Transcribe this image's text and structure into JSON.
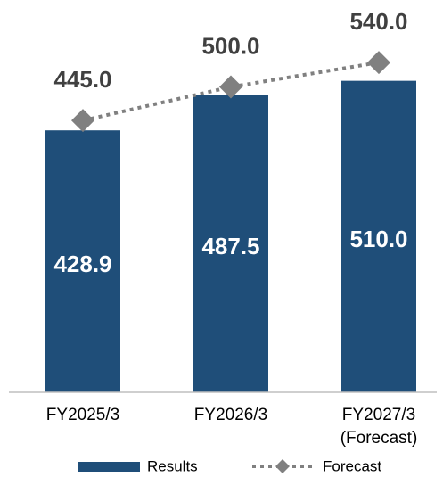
{
  "chart_data": {
    "type": "bar_line",
    "categories": [
      "FY2025/3",
      "FY2026/3",
      [
        "FY2027/3",
        "(Forecast)"
      ]
    ],
    "ylim": [
      0,
      600
    ],
    "series": [
      {
        "name": "Results",
        "type": "bar",
        "color": "#1f4e79",
        "values": [
          428.9,
          487.5,
          510
        ],
        "value_labels": [
          "428.9",
          "487.5",
          "510.0"
        ]
      },
      {
        "name": "Forecast",
        "type": "line",
        "color": "#808080",
        "values": [
          445,
          500,
          540
        ],
        "value_labels": [
          "445.0",
          "500.0",
          "540.0"
        ]
      }
    ]
  }
}
